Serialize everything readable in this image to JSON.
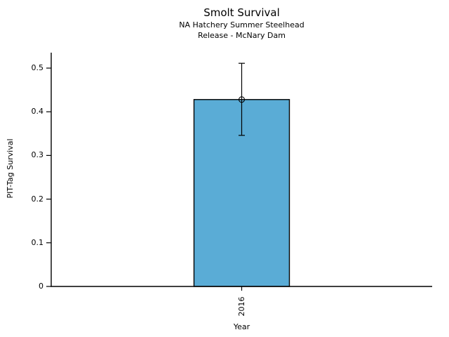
{
  "chart_data": {
    "type": "bar",
    "title": "Smolt Survival",
    "subtitle": [
      "NA Hatchery Summer Steelhead",
      "Release - McNary Dam"
    ],
    "categories": [
      "2016"
    ],
    "values": [
      0.428
    ],
    "error_bars": [
      {
        "lower": 0.346,
        "upper": 0.511
      }
    ],
    "xlabel": "Year",
    "ylabel": "PIT-Tag Survival",
    "ylim": [
      0,
      0.535
    ],
    "yticks": [
      0,
      0.1,
      0.2,
      0.3,
      0.4,
      0.5
    ],
    "ytick_labels": [
      "0",
      "0.1",
      "0.2",
      "0.3",
      "0.4",
      "0.5"
    ],
    "grid": false,
    "legend": "none",
    "bar_color": "#5AACD6",
    "bar_edge_color": "#000000",
    "error_color": "#000000",
    "marker": "open-circle",
    "background_color": "#FFFFFF"
  }
}
